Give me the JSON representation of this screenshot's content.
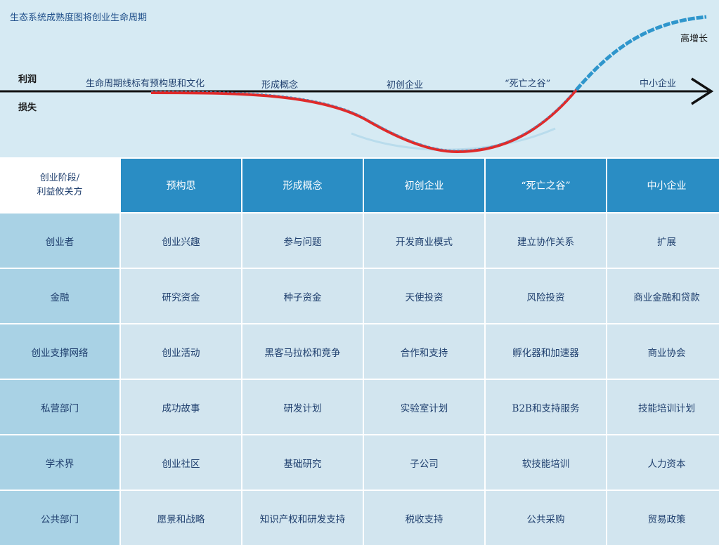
{
  "diagram": {
    "title": "生态系统成熟度图将创业生命周期",
    "profit_label": "利润",
    "loss_label": "损失",
    "lifecycle_note": "生命周期线标有预构思和文化",
    "curve_labels": [
      "形成概念",
      "初创企业",
      "“死亡之谷”",
      "中小企业"
    ],
    "high_growth_label": "高增长",
    "colors": {
      "loss_curve": "#e02a2a",
      "growth_curve": "#2f96cc",
      "axis": "#111111",
      "header_bg": "#2a8dc4",
      "cell_bg": "#d2e5ef",
      "row_header_bg": "#a9d2e5"
    }
  },
  "table": {
    "corner_line1": "创业阶段/",
    "corner_line2": "利益攸关方",
    "stages": [
      "预构思",
      "形成概念",
      "初创企业",
      "“死亡之谷”",
      "中小企业"
    ],
    "rows": [
      {
        "stakeholder": "创业者",
        "cells": [
          "创业兴趣",
          "参与问题",
          "开发商业模式",
          "建立协作关系",
          "扩展"
        ]
      },
      {
        "stakeholder": "金融",
        "cells": [
          "研究资金",
          "种子资金",
          "天使投资",
          "风险投资",
          "商业金融和贷款"
        ]
      },
      {
        "stakeholder": "创业支撑网络",
        "cells": [
          "创业活动",
          "黑客马拉松和竞争",
          "合作和支持",
          "孵化器和加速器",
          "商业协会"
        ]
      },
      {
        "stakeholder": "私营部门",
        "cells": [
          "成功故事",
          "研发计划",
          "实验室计划",
          "B2B和支持服务",
          "技能培训计划"
        ]
      },
      {
        "stakeholder": "学术界",
        "cells": [
          "创业社区",
          "基础研究",
          "子公司",
          "软技能培训",
          "人力资本"
        ]
      },
      {
        "stakeholder": "公共部门",
        "cells": [
          "愿景和战略",
          "知识产权和研发支持",
          "税收支持",
          "公共采购",
          "贸易政策"
        ]
      }
    ]
  }
}
